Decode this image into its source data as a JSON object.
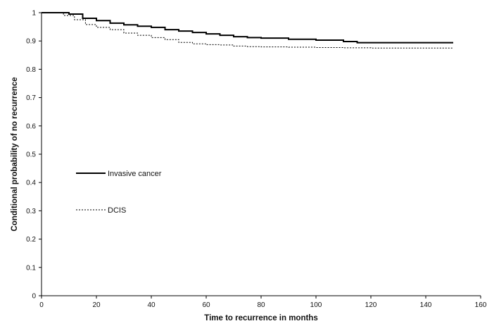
{
  "chart_data": {
    "type": "line",
    "title": "",
    "xlabel": "Time to recurrence in months",
    "ylabel": "Conditional probability of no recurrence",
    "xlim": [
      0,
      160
    ],
    "ylim": [
      0,
      1
    ],
    "x_ticks": [
      0,
      20,
      40,
      60,
      80,
      100,
      120,
      140,
      160
    ],
    "y_ticks": [
      0,
      0.1,
      0.2,
      0.3,
      0.4,
      0.5,
      0.6,
      0.7,
      0.8,
      0.9,
      1
    ],
    "x_tick_labels": [
      "0",
      "20",
      "40",
      "60",
      "80",
      "100",
      "120",
      "140",
      "160"
    ],
    "y_tick_labels": [
      "0",
      "0.1",
      "0.2",
      "0.3",
      "0.4",
      "0.5",
      "0.6",
      "0.7",
      "0.8",
      "0.9",
      "1"
    ],
    "grid": false,
    "legend_position": "left-middle",
    "series": [
      {
        "name": "Invasive cancer",
        "style": "solid",
        "color": "#000000",
        "points": [
          [
            0,
            1
          ],
          [
            6,
            1
          ],
          [
            10,
            0.995
          ],
          [
            15,
            0.98
          ],
          [
            20,
            0.972
          ],
          [
            25,
            0.963
          ],
          [
            30,
            0.957
          ],
          [
            35,
            0.952
          ],
          [
            40,
            0.948
          ],
          [
            45,
            0.94
          ],
          [
            50,
            0.935
          ],
          [
            55,
            0.93
          ],
          [
            60,
            0.925
          ],
          [
            65,
            0.92
          ],
          [
            70,
            0.915
          ],
          [
            75,
            0.912
          ],
          [
            80,
            0.91
          ],
          [
            90,
            0.906
          ],
          [
            100,
            0.903
          ],
          [
            110,
            0.898
          ],
          [
            115,
            0.894
          ],
          [
            120,
            0.894
          ],
          [
            130,
            0.894
          ],
          [
            140,
            0.894
          ],
          [
            150,
            0.894
          ]
        ]
      },
      {
        "name": "DCIS",
        "style": "dotted",
        "color": "#000000",
        "points": [
          [
            0,
            1
          ],
          [
            6,
            1
          ],
          [
            8,
            0.99
          ],
          [
            12,
            0.975
          ],
          [
            16,
            0.958
          ],
          [
            20,
            0.948
          ],
          [
            25,
            0.94
          ],
          [
            30,
            0.928
          ],
          [
            35,
            0.92
          ],
          [
            40,
            0.912
          ],
          [
            45,
            0.905
          ],
          [
            50,
            0.895
          ],
          [
            55,
            0.89
          ],
          [
            60,
            0.887
          ],
          [
            65,
            0.886
          ],
          [
            70,
            0.882
          ],
          [
            75,
            0.88
          ],
          [
            80,
            0.879
          ],
          [
            90,
            0.878
          ],
          [
            100,
            0.877
          ],
          [
            110,
            0.876
          ],
          [
            120,
            0.875
          ],
          [
            130,
            0.875
          ],
          [
            140,
            0.875
          ],
          [
            150,
            0.875
          ]
        ]
      }
    ]
  }
}
